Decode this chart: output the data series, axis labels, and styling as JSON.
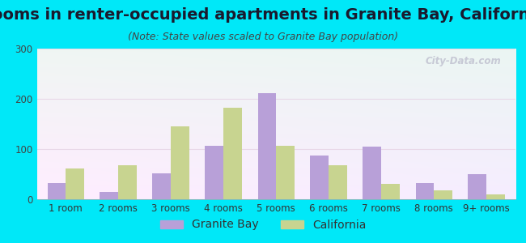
{
  "title": "Rooms in renter-occupied apartments in Granite Bay, California",
  "subtitle": "(Note: State values scaled to Granite Bay population)",
  "categories": [
    "1 room",
    "2 rooms",
    "3 rooms",
    "4 rooms",
    "5 rooms",
    "6 rooms",
    "7 rooms",
    "8 rooms",
    "9+ rooms"
  ],
  "granite_bay": [
    33,
    15,
    52,
    107,
    212,
    87,
    105,
    32,
    50
  ],
  "california": [
    62,
    67,
    145,
    183,
    107,
    67,
    30,
    18,
    10
  ],
  "granite_bay_color": "#b8a0d8",
  "california_color": "#c8d490",
  "background_outer": "#00e8f8",
  "ylim": [
    0,
    300
  ],
  "yticks": [
    0,
    100,
    200,
    300
  ],
  "title_fontsize": 14,
  "subtitle_fontsize": 9,
  "tick_fontsize": 8.5,
  "legend_fontsize": 10,
  "bar_width": 0.35,
  "watermark": "City-Data.com"
}
